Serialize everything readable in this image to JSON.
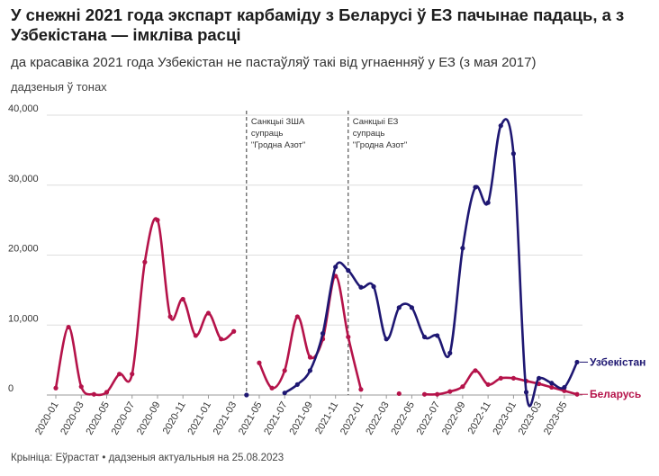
{
  "header": {
    "title": "У снежні 2021 года экспарт карбаміду з Беларусі ў ЕЗ пачынае падаць, а з Узбекістана — імкліва расці",
    "subtitle": "да красавіка 2021 года Узбекістан не пастаўляў такі від угнаенняў у ЕЗ (з мая 2017)",
    "unit": "дадзеныя ў тонах"
  },
  "footer": {
    "source": "Крыніца: Еўрастат • дадзеныя актуальныя на 25.08.2023"
  },
  "annotations": [
    {
      "date": "2021-04",
      "lines": [
        "Санкцыі ЗША",
        "супраць",
        "\"Гродна Азот\""
      ]
    },
    {
      "date": "2021-12",
      "lines": [
        "Санкцыі ЕЗ",
        "супраць",
        "\"Гродна Азот\""
      ]
    }
  ],
  "chart_data": {
    "type": "line",
    "title": "",
    "x_start": "2020-01",
    "x_ticks": [
      "2020-01",
      "2020-03",
      "2020-05",
      "2020-07",
      "2020-09",
      "2020-11",
      "2021-01",
      "2021-03",
      "2021-05",
      "2021-07",
      "2021-09",
      "2021-11",
      "2022-01",
      "2022-03",
      "2022-05",
      "2022-07",
      "2022-09",
      "2022-11",
      "2023-01",
      "2023-03",
      "2023-05"
    ],
    "y_ticks": [
      0,
      10000,
      20000,
      30000,
      40000
    ],
    "y_tick_labels": [
      "0",
      "10,000",
      "20,000",
      "30,000",
      "40,000"
    ],
    "ylim": [
      0,
      40000
    ],
    "grid": true,
    "series": [
      {
        "name": "Беларусь",
        "color": "#b5134a",
        "segments": [
          [
            [
              "2020-01",
              1000
            ],
            [
              "2020-02",
              9700
            ],
            [
              "2020-03",
              1200
            ],
            [
              "2020-04",
              100
            ],
            [
              "2020-05",
              400
            ],
            [
              "2020-06",
              3000
            ],
            [
              "2020-07",
              3000
            ],
            [
              "2020-08",
              19000
            ],
            [
              "2020-09",
              25000
            ],
            [
              "2020-10",
              11200
            ],
            [
              "2020-11",
              13700
            ],
            [
              "2020-12",
              8500
            ],
            [
              "2021-01",
              11700
            ],
            [
              "2021-02",
              8000
            ],
            [
              "2021-03",
              9100
            ]
          ],
          [
            [
              "2021-05",
              4600
            ],
            [
              "2021-06",
              1000
            ],
            [
              "2021-07",
              3500
            ],
            [
              "2021-08",
              11200
            ],
            [
              "2021-09",
              5400
            ],
            [
              "2021-10",
              8000
            ],
            [
              "2021-11",
              17000
            ],
            [
              "2021-12",
              8300
            ],
            [
              "2022-01",
              800
            ]
          ],
          [
            [
              "2022-04",
              200
            ]
          ],
          [
            [
              "2022-06",
              100
            ],
            [
              "2022-07",
              100
            ],
            [
              "2022-08",
              500
            ],
            [
              "2022-09",
              1200
            ],
            [
              "2022-10",
              3500
            ],
            [
              "2022-11",
              1500
            ],
            [
              "2022-12",
              2400
            ],
            [
              "2023-01",
              2400
            ],
            [
              "2023-02",
              2000
            ],
            [
              "2023-03",
              1600
            ],
            [
              "2023-04",
              1100
            ],
            [
              "2023-05",
              600
            ],
            [
              "2023-06",
              100
            ]
          ]
        ]
      },
      {
        "name": "Узбекістан",
        "color": "#1e1772",
        "segments": [
          [
            [
              "2021-04",
              0
            ]
          ],
          [
            [
              "2021-07",
              300
            ],
            [
              "2021-08",
              1500
            ],
            [
              "2021-09",
              3500
            ],
            [
              "2021-10",
              8800
            ],
            [
              "2021-11",
              18300
            ],
            [
              "2021-12",
              17800
            ],
            [
              "2022-01",
              15400
            ],
            [
              "2022-02",
              15500
            ],
            [
              "2022-03",
              8000
            ],
            [
              "2022-04",
              12500
            ],
            [
              "2022-05",
              12500
            ],
            [
              "2022-06",
              8300
            ],
            [
              "2022-07",
              8500
            ],
            [
              "2022-08",
              6000
            ],
            [
              "2022-09",
              21000
            ],
            [
              "2022-10",
              29700
            ],
            [
              "2022-11",
              27500
            ],
            [
              "2022-12",
              38500
            ],
            [
              "2023-01",
              34500
            ],
            [
              "2023-02",
              400
            ],
            [
              "2023-03",
              2400
            ],
            [
              "2023-04",
              1700
            ],
            [
              "2023-05",
              1100
            ],
            [
              "2023-06",
              4700
            ]
          ]
        ]
      }
    ]
  }
}
